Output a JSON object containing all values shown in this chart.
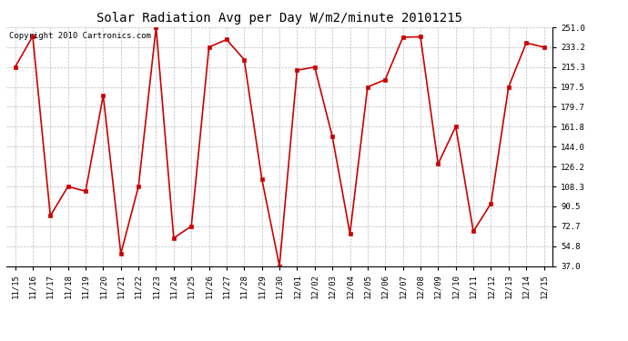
{
  "title": "Solar Radiation Avg per Day W/m2/minute 20101215",
  "copyright": "Copyright 2010 Cartronics.com",
  "dates": [
    "11/15",
    "11/16",
    "11/17",
    "11/18",
    "11/19",
    "11/20",
    "11/21",
    "11/22",
    "11/23",
    "11/24",
    "11/25",
    "11/26",
    "11/27",
    "11/28",
    "11/29",
    "11/30",
    "12/01",
    "12/02",
    "12/03",
    "12/04",
    "12/05",
    "12/06",
    "12/07",
    "12/08",
    "12/09",
    "12/10",
    "12/11",
    "12/12",
    "12/13",
    "12/14",
    "12/15"
  ],
  "values": [
    215.3,
    243.0,
    82.0,
    108.3,
    104.0,
    190.0,
    48.0,
    108.3,
    251.0,
    62.0,
    72.7,
    233.2,
    240.0,
    222.0,
    115.0,
    37.0,
    212.5,
    215.3,
    153.0,
    66.0,
    197.5,
    204.0,
    242.0,
    242.5,
    128.5,
    162.0,
    68.0,
    93.0,
    197.5,
    237.0,
    233.2
  ],
  "line_color": "#cc0000",
  "marker_color": "#cc0000",
  "bg_color": "#ffffff",
  "grid_color": "#bbbbbb",
  "title_fontsize": 10,
  "tick_fontsize": 6.5,
  "copyright_fontsize": 6.5,
  "ylim": [
    37.0,
    251.0
  ],
  "yticks": [
    37.0,
    54.8,
    72.7,
    90.5,
    108.3,
    126.2,
    144.0,
    161.8,
    179.7,
    197.5,
    215.3,
    233.2,
    251.0
  ]
}
